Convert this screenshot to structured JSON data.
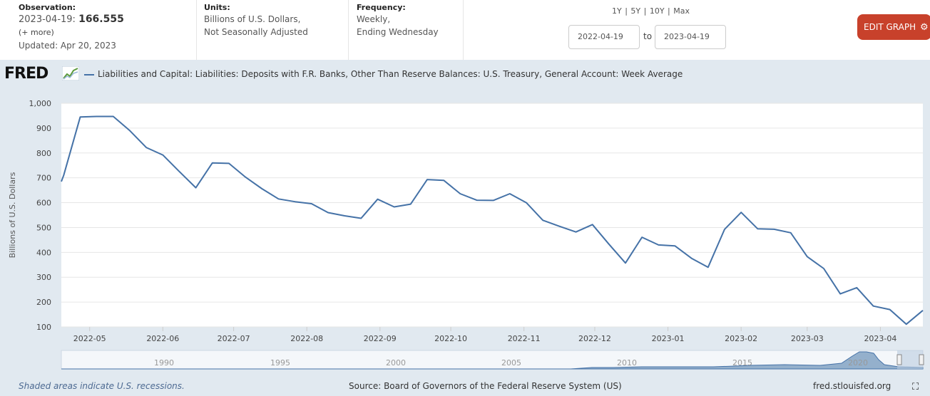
{
  "header": {
    "observation_label": "Observation:",
    "observation_date": "2023-04-19:",
    "observation_value": "166.555",
    "more_label": "(+ more)",
    "updated": "Updated: Apr 20, 2023",
    "units_label": "Units:",
    "units_line1": "Billions of U.S. Dollars,",
    "units_line2": "Not Seasonally Adjusted",
    "frequency_label": "Frequency:",
    "frequency_line1": "Weekly,",
    "frequency_line2": "Ending Wednesday",
    "range_1y": "1Y",
    "range_5y": "5Y",
    "range_10y": "10Y",
    "range_max": "Max",
    "date_from": "2022-04-19",
    "date_to": "2023-04-19",
    "date_to_label": "to",
    "edit_button": "EDIT GRAPH"
  },
  "logo_text": "FRED",
  "footer": {
    "recession_note": "Shaded areas indicate U.S. recessions.",
    "source": "Source: Board of Governors of the Federal Reserve System (US)",
    "site": "fred.stlouisfed.org"
  },
  "colors": {
    "line": "#4572a7",
    "background": "#e1e9f0",
    "button": "#c8412b"
  },
  "chart_data": {
    "type": "line",
    "title": "Liabilities and Capital: Liabilities: Deposits with F.R. Banks, Other Than Reserve Balances: U.S. Treasury, General Account: Week Average",
    "ylabel": "Billions of U.S. Dollars",
    "xlabel": "",
    "ylim": [
      100,
      1000
    ],
    "xlim": [
      "2022-04-19",
      "2023-04-19"
    ],
    "yticks": [
      "100",
      "200",
      "300",
      "400",
      "500",
      "600",
      "700",
      "800",
      "900",
      "1,000"
    ],
    "xticks": [
      "2022-05",
      "2022-06",
      "2022-07",
      "2022-08",
      "2022-09",
      "2022-10",
      "2022-11",
      "2022-12",
      "2023-01",
      "2023-02",
      "2023-03",
      "2023-04"
    ],
    "grid": true,
    "legend": "top-left",
    "series": [
      {
        "name": "Liabilities and Capital: Liabilities: Deposits with F.R. Banks, Other Than Reserve Balances: U.S. Treasury, General Account: Week Average",
        "x": [
          "2022-04-20",
          "2022-04-27",
          "2022-05-04",
          "2022-05-11",
          "2022-05-18",
          "2022-05-25",
          "2022-06-01",
          "2022-06-08",
          "2022-06-15",
          "2022-06-22",
          "2022-06-29",
          "2022-07-06",
          "2022-07-13",
          "2022-07-20",
          "2022-07-27",
          "2022-08-03",
          "2022-08-10",
          "2022-08-17",
          "2022-08-24",
          "2022-08-31",
          "2022-09-07",
          "2022-09-14",
          "2022-09-21",
          "2022-09-28",
          "2022-10-05",
          "2022-10-12",
          "2022-10-19",
          "2022-10-26",
          "2022-11-02",
          "2022-11-09",
          "2022-11-16",
          "2022-11-23",
          "2022-11-30",
          "2022-12-07",
          "2022-12-14",
          "2022-12-21",
          "2022-12-28",
          "2023-01-04",
          "2023-01-11",
          "2023-01-18",
          "2023-01-25",
          "2023-02-01",
          "2023-02-08",
          "2023-02-15",
          "2023-02-22",
          "2023-03-01",
          "2023-03-08",
          "2023-03-15",
          "2023-03-22",
          "2023-03-29",
          "2023-04-05",
          "2023-04-12",
          "2023-04-19"
        ],
        "values": [
          710,
          945,
          947,
          947,
          890,
          822,
          792,
          725,
          660,
          760,
          758,
          703,
          656,
          615,
          604,
          596,
          560,
          547,
          537,
          614,
          583,
          594,
          693,
          690,
          636,
          610,
          609,
          636,
          600,
          529,
          505,
          482,
          512,
          433,
          357,
          461,
          430,
          426,
          376,
          340,
          493,
          561,
          495,
          493,
          479,
          383,
          335,
          233,
          258,
          184,
          170,
          111,
          166.555
        ]
      }
    ]
  },
  "navigator": {
    "labels": [
      "1990",
      "1995",
      "2000",
      "2005",
      "2010",
      "2015",
      "2020"
    ]
  }
}
